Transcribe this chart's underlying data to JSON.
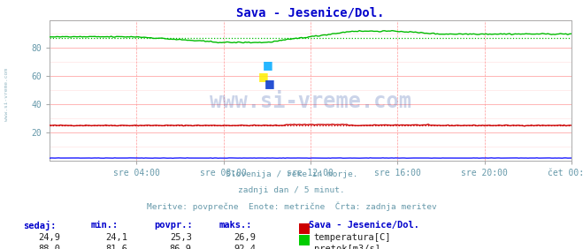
{
  "title": "Sava - Jesenice/Dol.",
  "title_color": "#0000cc",
  "bg_color": "#ffffff",
  "plot_bg_color": "#ffffff",
  "grid_color_major": "#ff9999",
  "grid_color_minor": "#ffdddd",
  "text_color": "#6699aa",
  "watermark": "www.si-vreme.com",
  "watermark_color": "#3355aa",
  "watermark_alpha": 0.25,
  "subtitle_lines": [
    "Slovenija / reke in morje.",
    "zadnji dan / 5 minut.",
    "Meritve: povprečne  Enote: metrične  Črta: zadnja meritev"
  ],
  "legend_title": "Sava - Jesenice/Dol.",
  "legend_items": [
    {
      "label": "temperatura[C]",
      "color": "#cc0000"
    },
    {
      "label": "pretok[m3/s]",
      "color": "#00cc00"
    }
  ],
  "table_headers": [
    "sedaj:",
    "min.:",
    "povpr.:",
    "maks.:"
  ],
  "table_rows": [
    [
      "24,9",
      "24,1",
      "25,3",
      "26,9"
    ],
    [
      "88,0",
      "81,6",
      "86,9",
      "92,4"
    ]
  ],
  "xticklabels": [
    "sre 04:00",
    "sre 08:00",
    "sre 12:00",
    "sre 16:00",
    "sre 20:00",
    "čet 00:00"
  ],
  "xtick_positions": [
    0.16667,
    0.33333,
    0.5,
    0.66667,
    0.83333,
    1.0
  ],
  "ylim": [
    0,
    100
  ],
  "yticks": [
    20,
    40,
    60,
    80
  ],
  "temp_color": "#cc0000",
  "flow_color": "#00bb00",
  "blue_color": "#0000ff",
  "spine_color": "#aaaaaa",
  "temp_avg": 25.3,
  "flow_avg": 86.9,
  "temp_min": 24.1,
  "temp_max": 26.9,
  "flow_min": 81.6,
  "flow_max": 92.4,
  "temp_current": 24.9,
  "flow_current": 88.0
}
